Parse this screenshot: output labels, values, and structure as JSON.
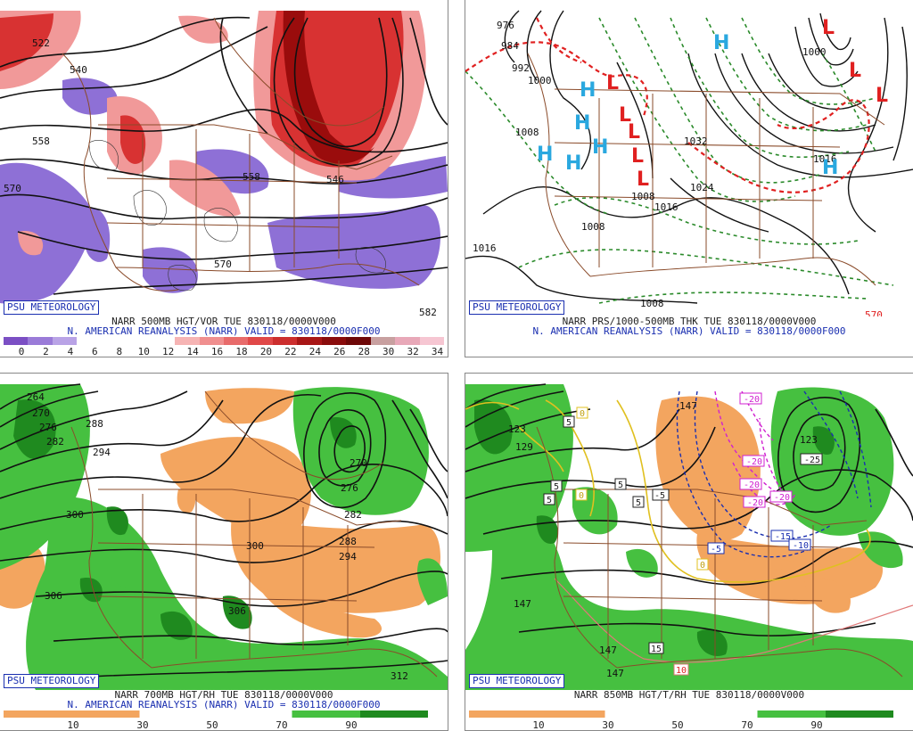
{
  "badge": "PSU METEOROLOGY",
  "colors": {
    "vort_blue": "#8e70d6",
    "vort_pink": "#f19999",
    "vort_red": "#d83232",
    "vort_dark": "#9a0c0c",
    "rh_orange": "#f3a55f",
    "rh_green": "#46c040",
    "rh_dark": "#1f8a1f",
    "title_blue": "#1a2fb0",
    "high_blue": "#2aa8df",
    "low_red": "#e02020",
    "border_brown": "#8a4b2a"
  },
  "panels": [
    {
      "id": "vorticity",
      "line1": "NARR 500MB HGT/VOR TUE 830118/0000V000",
      "line2": "N. AMERICAN REANALYSIS (NARR) VALID = 830118/0000F000",
      "colorbar": {
        "labels": [
          "0",
          "2",
          "4",
          "6",
          "8",
          "10",
          "12",
          "14",
          "16",
          "18",
          "20",
          "22",
          "24",
          "26",
          "28",
          "30",
          "32",
          "34"
        ],
        "colors": [
          "#7b4fc4",
          "#9a7bd8",
          "#b9a3e6",
          "#ffffff",
          "#ffffff",
          "#ffffff",
          "#ffffff",
          "#f6b4b4",
          "#f08f8f",
          "#e86b6b",
          "#e04848",
          "#cc2e2e",
          "#a81616",
          "#8a0c0c",
          "#6e0808",
          "#c8a0a0",
          "#e8a8b8",
          "#f6c6d2"
        ]
      },
      "contour_labels": [
        "522",
        "540",
        "558",
        "570",
        "558",
        "546",
        "570",
        "582"
      ]
    },
    {
      "id": "pressure",
      "line1": "NARR PRS/1000-500MB THK TUE 830118/0000V000",
      "line2": "N. AMERICAN REANALYSIS (NARR) VALID = 830118/0000F000",
      "contour_labels": [
        "976",
        "984",
        "992",
        "1000",
        "1008",
        "1008",
        "1016",
        "1032",
        "1024",
        "1016",
        "1008",
        "1000",
        "1016",
        "1008",
        "570"
      ],
      "highs": [
        "H",
        "H",
        "H",
        "H",
        "H",
        "H",
        "H"
      ],
      "lows": [
        "L",
        "L",
        "L",
        "L",
        "L",
        "L",
        "L",
        "L"
      ]
    },
    {
      "id": "rh700",
      "line1": "NARR 700MB HGT/RH TUE 830118/0000V000",
      "line2": "N. AMERICAN REANALYSIS (NARR) VALID = 830118/0000F000",
      "colorbar": {
        "labels": [
          "10",
          "30",
          "50",
          "70",
          "90"
        ]
      },
      "contour_labels": [
        "264",
        "270",
        "276",
        "282",
        "288",
        "294",
        "300",
        "306",
        "270",
        "276",
        "282",
        "288",
        "294",
        "300",
        "306",
        "312"
      ]
    },
    {
      "id": "t850",
      "line1": "NARR 850MB HGT/T/RH TUE 830118/0000V000",
      "colorbar": {
        "labels": [
          "10",
          "30",
          "50",
          "70",
          "90"
        ]
      },
      "contour_labels": [
        "123",
        "129",
        "147",
        "147",
        "123",
        "147",
        "147",
        "-15",
        "-10",
        "-5",
        "-20",
        "-20",
        "-20",
        "-20",
        "-25",
        "-20",
        "0",
        "0",
        "0",
        "5",
        "5",
        "5",
        "5",
        "5",
        "-5",
        "15",
        "10"
      ]
    }
  ]
}
